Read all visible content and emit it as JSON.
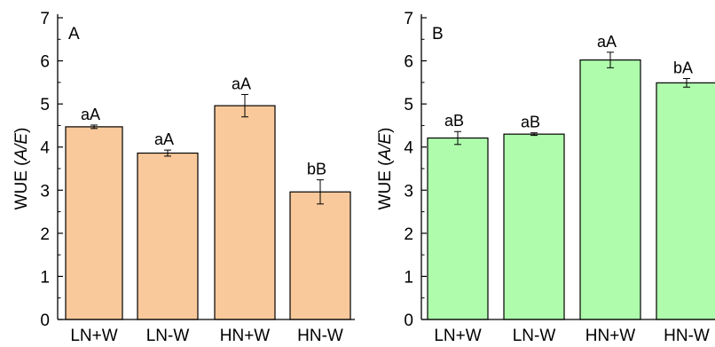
{
  "chart_data": [
    {
      "type": "bar",
      "panel_label": "A",
      "categories": [
        "LN+W",
        "LN-W",
        "HN+W",
        "HN-W"
      ],
      "values": [
        4.47,
        3.86,
        4.96,
        2.96
      ],
      "errors": [
        0.04,
        0.07,
        0.26,
        0.28
      ],
      "labels": [
        "aA",
        "aA",
        "aA",
        "bB"
      ],
      "ylabel_prefix": "WUE (",
      "ylabel_italic": "A/E",
      "ylabel_suffix": ")",
      "ylim": [
        0,
        7
      ],
      "yticks": [
        "0",
        "1",
        "2",
        "3",
        "4",
        "5",
        "6",
        "7"
      ],
      "bar_color": "#F9C99B",
      "grid": false
    },
    {
      "type": "bar",
      "panel_label": "B",
      "categories": [
        "LN+W",
        "LN-W",
        "HN+W",
        "HN-W"
      ],
      "values": [
        4.21,
        4.3,
        6.02,
        5.49
      ],
      "errors": [
        0.15,
        0.03,
        0.18,
        0.1
      ],
      "labels": [
        "aB",
        "aB",
        "aA",
        "bA"
      ],
      "ylabel_prefix": "WUE (",
      "ylabel_italic": "A/E",
      "ylabel_suffix": ")",
      "ylim": [
        0,
        7
      ],
      "yticks": [
        "0",
        "1",
        "2",
        "3",
        "4",
        "5",
        "6",
        "7"
      ],
      "bar_color": "#AEFCAC",
      "grid": false
    }
  ]
}
